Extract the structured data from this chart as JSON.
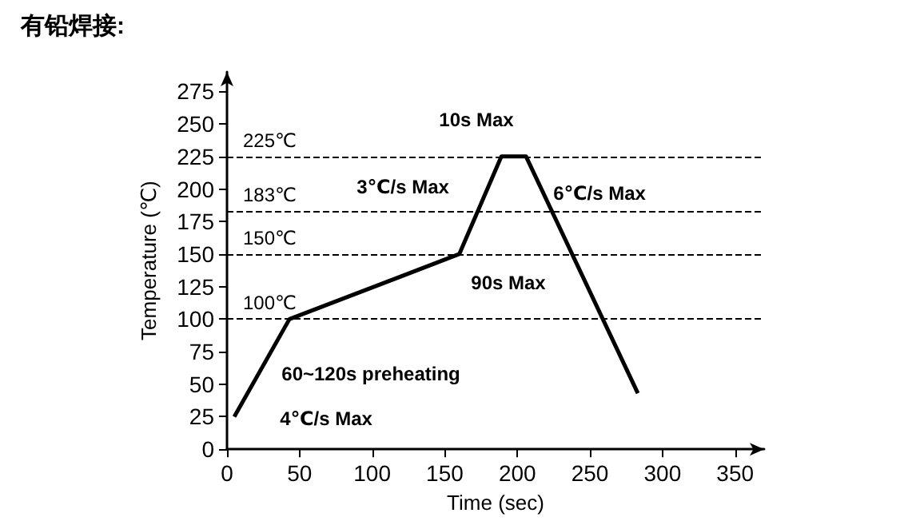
{
  "chart_data": {
    "type": "line",
    "title": "有铅焊接:",
    "xlabel": "Time (sec)",
    "ylabel": "Temperature (℃)",
    "x": [
      5,
      43,
      160,
      189,
      206,
      283
    ],
    "series": [
      {
        "color": "#000000",
        "values": [
          25,
          100,
          150,
          225,
          225,
          43
        ]
      }
    ],
    "xlim": [
      0,
      370
    ],
    "xticks": [
      0,
      50,
      100,
      150,
      200,
      250,
      300,
      350
    ],
    "ylim": [
      0,
      290
    ],
    "yticks": [
      0,
      25,
      50,
      75,
      100,
      125,
      150,
      175,
      200,
      225,
      250,
      275
    ],
    "grid": false,
    "marker": "none",
    "line_style": "solid",
    "ref_lines": [
      {
        "axis": "y",
        "value": 225,
        "label": "225℃",
        "line_style": "dashed"
      },
      {
        "axis": "y",
        "value": 183,
        "label": "183℃",
        "line_style": "dashed"
      },
      {
        "axis": "y",
        "value": 150,
        "label": "150℃",
        "line_style": "dashed"
      },
      {
        "axis": "y",
        "value": 100,
        "label": "100℃",
        "line_style": "dashed"
      }
    ],
    "annotations": [
      "10s Max",
      "3℃/s Max",
      "6℃/s Max",
      "90s Max",
      "60~120s preheating",
      "4℃/s Max"
    ]
  }
}
